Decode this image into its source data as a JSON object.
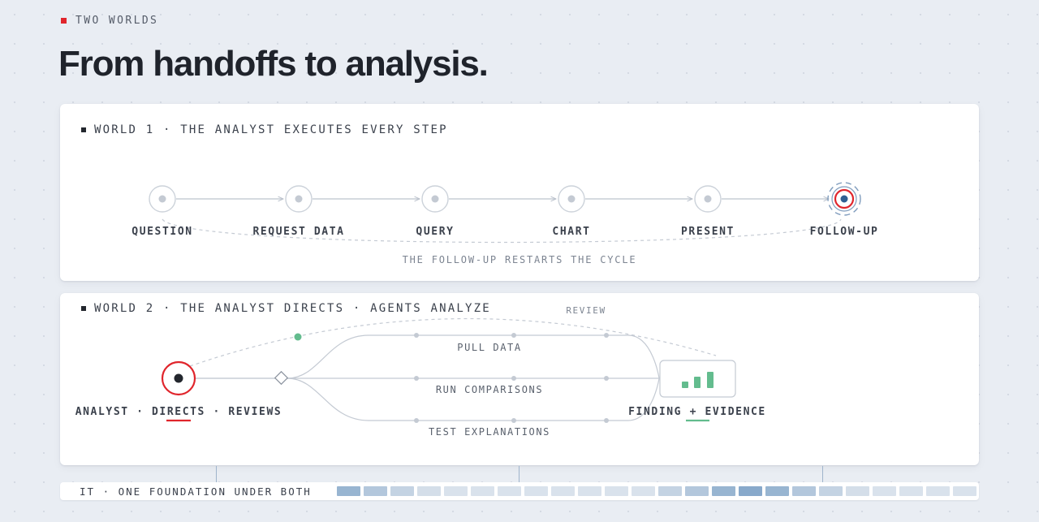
{
  "eyebrow": "TWO WORLDS",
  "headline": "From handoffs to analysis.",
  "world1": {
    "title": "WORLD 1 · THE ANALYST EXECUTES EVERY STEP",
    "steps": [
      "QUESTION",
      "REQUEST DATA",
      "QUERY",
      "CHART",
      "PRESENT",
      "FOLLOW-UP"
    ],
    "caption": "THE FOLLOW-UP RESTARTS THE CYCLE"
  },
  "world2": {
    "title": "WORLD 2 · THE ANALYST DIRECTS · AGENTS ANALYZE",
    "review_label": "REVIEW",
    "analyst_label": {
      "analyst": "ANALYST",
      "sep1": "·",
      "directs": "DIRECTS",
      "sep2": "·",
      "reviews": "REVIEWS"
    },
    "branches": [
      "PULL DATA",
      "RUN COMPARISONS",
      "TEST EXPLANATIONS"
    ],
    "finding_label": {
      "finding": "FINDING",
      "plus": "+",
      "evidence": "EVIDENCE"
    }
  },
  "foundation": {
    "label": "IT · ONE FOUNDATION UNDER BOTH",
    "cells": [
      0.7,
      0.45,
      0.3,
      0.15,
      0.1,
      0.1,
      0.1,
      0.1,
      0.1,
      0.1,
      0.1,
      0.1,
      0.3,
      0.45,
      0.7,
      0.85,
      0.7,
      0.45,
      0.3,
      0.15,
      0.1,
      0.1,
      0.1,
      0.1
    ]
  },
  "colors": {
    "accent_red": "#e0252c",
    "node_blue": "#2f5f92",
    "accent_green": "#63bc8e",
    "line_gray": "#bcc3cd"
  }
}
